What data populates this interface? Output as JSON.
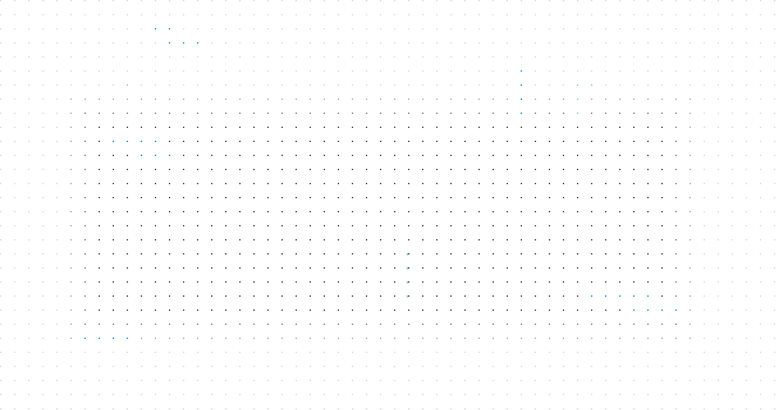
{
  "background": "#ffffff",
  "colors": {
    "dot_dark": "#50545c",
    "dot_medium": "#8a8c90",
    "dot_soft": "#b0b2b4",
    "dot_light": "#dedede",
    "accent_blue": "#2196f3",
    "accent_blue_light": "#8ec8f8"
  }
}
